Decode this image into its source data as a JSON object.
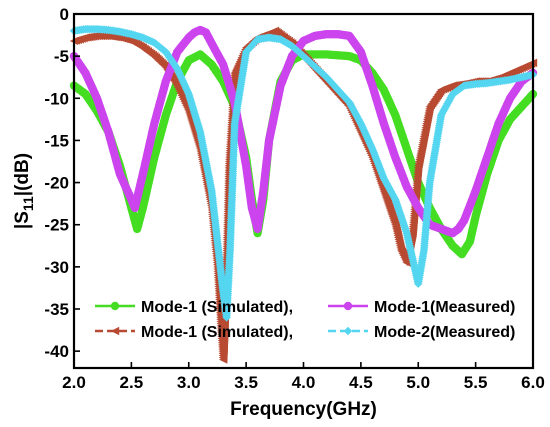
{
  "chart_data": {
    "type": "line",
    "title": "",
    "xlabel": "Frequency(GHz)",
    "ylabel_main": "|S",
    "ylabel_sub": "11",
    "ylabel_tail": "|(dB)",
    "xlim": [
      2.0,
      6.0
    ],
    "ylim": [
      -42,
      0
    ],
    "xticks": [
      "2.0",
      "2.5",
      "3.0",
      "3.5",
      "4.0",
      "4.5",
      "5.0",
      "5.5",
      "6.0"
    ],
    "yticks": [
      "0",
      "-5",
      "-10",
      "-15",
      "-20",
      "-25",
      "-30",
      "-35",
      "-40"
    ],
    "grid": false,
    "legend_position": "bottom-center",
    "series": [
      {
        "name": "Mode-1 (Simulated),",
        "color": "#44dd22",
        "marker": "circle",
        "x": [
          2.0,
          2.1,
          2.2,
          2.3,
          2.4,
          2.5,
          2.55,
          2.6,
          2.7,
          2.8,
          2.9,
          3.0,
          3.1,
          3.2,
          3.3,
          3.4,
          3.5,
          3.55,
          3.6,
          3.65,
          3.7,
          3.8,
          3.9,
          4.0,
          4.2,
          4.4,
          4.5,
          4.6,
          4.7,
          4.8,
          4.9,
          5.0,
          5.1,
          5.2,
          5.3,
          5.38,
          5.45,
          5.5,
          5.6,
          5.7,
          5.8,
          5.9,
          6.0
        ],
        "y": [
          -8.5,
          -9.5,
          -11.5,
          -14,
          -18,
          -23,
          -25.5,
          -23,
          -17,
          -12,
          -8,
          -5.5,
          -4.8,
          -6,
          -8,
          -11,
          -17,
          -22,
          -26,
          -22,
          -15,
          -8,
          -5.5,
          -4.8,
          -4.8,
          -5,
          -5.5,
          -7,
          -9,
          -12,
          -16,
          -20,
          -23,
          -25.5,
          -27.5,
          -28.5,
          -27,
          -24,
          -19,
          -15,
          -12.5,
          -11,
          -9.5
        ]
      },
      {
        "name": "Mode-1 (Simulated),",
        "color": "#b84a32",
        "marker": "triangle-left",
        "x": [
          2.0,
          2.1,
          2.2,
          2.3,
          2.4,
          2.5,
          2.6,
          2.7,
          2.8,
          2.9,
          3.0,
          3.1,
          3.2,
          3.25,
          3.28,
          3.3,
          3.32,
          3.35,
          3.4,
          3.5,
          3.6,
          3.7,
          3.75,
          3.8,
          3.9,
          4.0,
          4.2,
          4.4,
          4.6,
          4.7,
          4.8,
          4.85,
          4.9,
          4.95,
          5.0,
          5.1,
          5.2,
          5.3,
          5.4,
          5.5,
          5.6,
          5.7,
          5.8,
          5.9,
          6.0
        ],
        "y": [
          -3.2,
          -2.8,
          -2.6,
          -2.6,
          -2.8,
          -3.2,
          -4.0,
          -5.0,
          -6.3,
          -8.5,
          -11.5,
          -16,
          -23,
          -30,
          -37,
          -41,
          -34,
          -18,
          -7,
          -4,
          -2.8,
          -2.3,
          -2,
          -2.5,
          -3.5,
          -5,
          -8,
          -11,
          -17,
          -21,
          -25,
          -28,
          -29.5,
          -26,
          -18,
          -11,
          -9,
          -8.5,
          -8.3,
          -8,
          -8,
          -7.6,
          -7,
          -6.4,
          -5.8
        ]
      },
      {
        "name": "Mode-1(Measured)",
        "color": "#cc44ee",
        "marker": "circle",
        "x": [
          2.0,
          2.1,
          2.2,
          2.3,
          2.4,
          2.5,
          2.53,
          2.6,
          2.7,
          2.8,
          2.9,
          3.0,
          3.05,
          3.1,
          3.15,
          3.2,
          3.3,
          3.4,
          3.5,
          3.55,
          3.6,
          3.65,
          3.7,
          3.8,
          3.9,
          4.0,
          4.1,
          4.2,
          4.3,
          4.4,
          4.5,
          4.6,
          4.7,
          4.8,
          4.9,
          5.0,
          5.1,
          5.2,
          5.3,
          5.35,
          5.4,
          5.5,
          5.6,
          5.7,
          5.8,
          5.9,
          6.0
        ],
        "y": [
          -5,
          -7,
          -10,
          -14,
          -19,
          -22,
          -23,
          -19,
          -13,
          -8,
          -4.5,
          -2.8,
          -2.2,
          -1.9,
          -2.2,
          -3.5,
          -6,
          -10.5,
          -18,
          -23,
          -25.5,
          -21,
          -15,
          -8.5,
          -5,
          -3.2,
          -2.6,
          -2.4,
          -2.4,
          -2.6,
          -4.5,
          -8.5,
          -13,
          -17,
          -20.5,
          -23,
          -25,
          -25.5,
          -26,
          -25.5,
          -24.5,
          -21,
          -17,
          -13,
          -10,
          -8,
          -7
        ]
      },
      {
        "name": "Mode-2(Measured)",
        "color": "#55d6f0",
        "marker": "diamond",
        "x": [
          2.0,
          2.1,
          2.2,
          2.3,
          2.4,
          2.5,
          2.6,
          2.7,
          2.8,
          2.9,
          3.0,
          3.1,
          3.2,
          3.25,
          3.3,
          3.33,
          3.36,
          3.4,
          3.5,
          3.6,
          3.7,
          3.8,
          3.9,
          4.0,
          4.2,
          4.4,
          4.5,
          4.6,
          4.7,
          4.8,
          4.9,
          4.95,
          5.0,
          5.05,
          5.1,
          5.2,
          5.3,
          5.4,
          5.5,
          5.6,
          5.7,
          5.8,
          5.9,
          6.0
        ],
        "y": [
          -2,
          -1.8,
          -1.8,
          -1.9,
          -2.1,
          -2.4,
          -2.8,
          -3.4,
          -4.5,
          -6.5,
          -9.5,
          -14,
          -21,
          -27,
          -33,
          -36,
          -28,
          -13,
          -4.5,
          -3,
          -2.8,
          -3,
          -3.8,
          -5,
          -7.5,
          -10.5,
          -13,
          -16,
          -19.5,
          -22,
          -26,
          -29,
          -32,
          -28,
          -20,
          -12,
          -9.5,
          -8.5,
          -8.3,
          -8.2,
          -8,
          -7.8,
          -7.5,
          -7.2
        ]
      }
    ]
  }
}
